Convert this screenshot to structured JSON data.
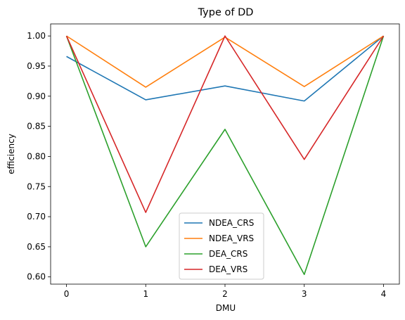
{
  "chart_data": {
    "type": "line",
    "title": "Type of DD",
    "xlabel": "DMU",
    "ylabel": "efficiency",
    "x": [
      0,
      1,
      2,
      3,
      4
    ],
    "xlim": [
      -0.2,
      4.2
    ],
    "ylim": [
      0.588,
      1.02
    ],
    "xticks": [
      0,
      1,
      2,
      3,
      4
    ],
    "yticks": [
      0.6,
      0.65,
      0.7,
      0.75,
      0.8,
      0.85,
      0.9,
      0.95,
      1.0
    ],
    "ytick_format": "2dp",
    "grid": false,
    "legend_position": "lower center",
    "series": [
      {
        "name": "NDEA_CRS",
        "color": "#1f77b4",
        "values": [
          0.966,
          0.894,
          0.917,
          0.892,
          1.0
        ]
      },
      {
        "name": "NDEA_VRS",
        "color": "#ff7f0e",
        "values": [
          1.0,
          0.915,
          0.998,
          0.916,
          1.0
        ]
      },
      {
        "name": "DEA_CRS",
        "color": "#2ca02c",
        "values": [
          1.0,
          0.65,
          0.845,
          0.604,
          1.0
        ]
      },
      {
        "name": "DEA_VRS",
        "color": "#d62728",
        "values": [
          1.0,
          0.707,
          1.0,
          0.795,
          1.0
        ]
      }
    ]
  }
}
